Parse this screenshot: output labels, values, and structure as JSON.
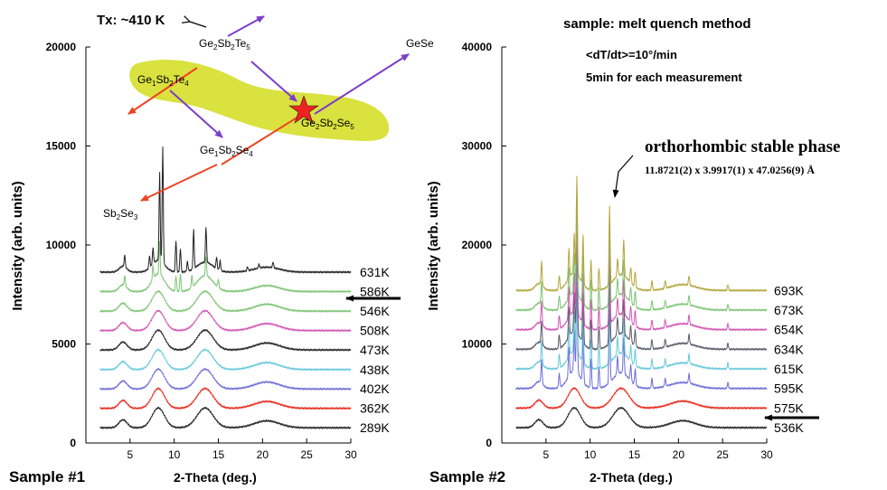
{
  "sample_method": "sample: melt quench method",
  "rate_text": "<dT/dt>=10°/min",
  "time_text": "5min for each measurement",
  "tx_label": "Tx: ~410 K",
  "phase_title": "orthorhombic stable phase",
  "lattice_text": "11.8721(2) x  3.9917(1) x 47.0256(9) Å",
  "compositions": {
    "ge2sb2te5": {
      "base": "Ge",
      "s1": "2",
      "m1": "Sb",
      "s2": "2",
      "m2": "Te",
      "s3": "5"
    },
    "ge1sb2te4": {
      "base": "Ge",
      "s1": "1",
      "m1": "Sb",
      "s2": "2",
      "m2": "Te",
      "s3": "4"
    },
    "ge2sb2se5": {
      "base": "Ge",
      "s1": "2",
      "m1": "Sb",
      "s2": "2",
      "m2": "Se",
      "s3": "5"
    },
    "ge1sb2se4": {
      "base": "Ge",
      "s1": "1",
      "m1": "Sb",
      "s2": "2",
      "m2": "Se",
      "s3": "4"
    },
    "sb2se3": {
      "base": "Sb",
      "s1": "2",
      "m1": "Se",
      "s2": "3"
    },
    "gese": "GeSe"
  },
  "colors": {
    "black": "#222222",
    "red": "#e8291c",
    "blue": "#6f6cd6",
    "cyan": "#66c8dc",
    "magenta": "#d155b4",
    "green": "#7dc475",
    "olive": "#b2a63c",
    "gray": "#5a5a6a",
    "blob": "#d9e23e",
    "arrow_red": "#ee4422",
    "arrow_purple": "#7b3ec9",
    "star": "#ee2222"
  },
  "chart_data": [
    {
      "type": "line",
      "sample_label": "Sample #1",
      "xlabel": "2-Theta (deg.)",
      "ylabel": "Intensity  (arb. units)",
      "xlim": [
        0,
        30
      ],
      "ylim": [
        0,
        20000
      ],
      "xticks": [
        5,
        10,
        15,
        20,
        25,
        30
      ],
      "yticks": [
        0,
        5000,
        10000,
        15000,
        20000
      ],
      "xtick_labels": [
        "5",
        "10",
        "15",
        "20",
        "25",
        "30"
      ],
      "ytick_labels": [
        "0",
        "5000",
        "10000",
        "15000",
        "20000"
      ],
      "marker_series": "546K",
      "series": [
        {
          "name": "289K",
          "color_key": "black",
          "profile": "amorphous",
          "base": 770,
          "end_value": 770
        },
        {
          "name": "362K",
          "color_key": "red",
          "profile": "amorphous",
          "base": 1750,
          "end_value": 1750
        },
        {
          "name": "402K",
          "color_key": "blue",
          "profile": "amorphous",
          "base": 2730,
          "end_value": 2730
        },
        {
          "name": "438K",
          "color_key": "cyan",
          "profile": "amorphous",
          "base": 3710,
          "end_value": 3710
        },
        {
          "name": "473K",
          "color_key": "black",
          "profile": "amorphous",
          "base": 4700,
          "end_value": 4700
        },
        {
          "name": "508K",
          "color_key": "magenta",
          "profile": "amorphous",
          "base": 5680,
          "end_value": 5680
        },
        {
          "name": "546K",
          "color_key": "green",
          "profile": "amorphous",
          "base": 6660,
          "end_value": 6660
        },
        {
          "name": "586K",
          "color_key": "green",
          "profile": "crystal_a",
          "base": 7650,
          "end_value": 7650
        },
        {
          "name": "631K",
          "color_key": "black",
          "profile": "crystal_b",
          "base": 8630,
          "end_value": 8630
        }
      ]
    },
    {
      "type": "line",
      "sample_label": "Sample #2",
      "xlabel": "2-Theta (deg.)",
      "ylabel": "Intensity  (arb. units)",
      "xlim": [
        0,
        30
      ],
      "ylim": [
        0,
        40000
      ],
      "xticks": [
        5,
        10,
        15,
        20,
        25,
        30
      ],
      "yticks": [
        0,
        10000,
        20000,
        30000,
        40000
      ],
      "xtick_labels": [
        "5",
        "10",
        "15",
        "20",
        "25",
        "30"
      ],
      "ytick_labels": [
        "0",
        "10000",
        "20000",
        "30000",
        "40000"
      ],
      "marker_series": "575K",
      "series": [
        {
          "name": "536K",
          "color_key": "black",
          "profile": "amorphous",
          "base": 1550,
          "end_value": 1550
        },
        {
          "name": "575K",
          "color_key": "red",
          "profile": "amorphous",
          "base": 3530,
          "end_value": 3530
        },
        {
          "name": "595K",
          "color_key": "blue",
          "profile": "ortho",
          "base": 5510,
          "end_value": 5510
        },
        {
          "name": "615K",
          "color_key": "cyan",
          "profile": "ortho",
          "base": 7490,
          "end_value": 7490
        },
        {
          "name": "634K",
          "color_key": "gray",
          "profile": "ortho",
          "base": 9470,
          "end_value": 9470
        },
        {
          "name": "654K",
          "color_key": "magenta",
          "profile": "ortho",
          "base": 11450,
          "end_value": 11450
        },
        {
          "name": "673K",
          "color_key": "green",
          "profile": "ortho",
          "base": 13430,
          "end_value": 13430
        },
        {
          "name": "693K",
          "color_key": "olive",
          "profile": "ortho",
          "base": 15410,
          "end_value": 15410
        }
      ]
    }
  ]
}
